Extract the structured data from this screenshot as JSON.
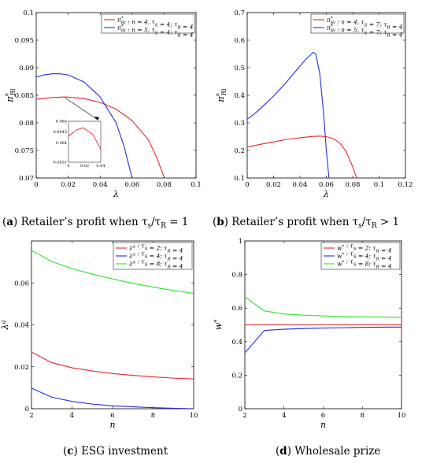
{
  "captions": {
    "a": {
      "label": "a",
      "text": "Retailer’s profit when τ",
      "sub1": "s",
      "slash": "/τ",
      "sub2": "R",
      "tail": " = 1"
    },
    "b": {
      "label": "b",
      "text": "Retailer’s profit when τ",
      "sub1": "s",
      "slash": "/τ",
      "sub2": "R",
      "tail": " > 1"
    },
    "c": {
      "label": "c",
      "text": "ESG investment"
    },
    "d": {
      "label": "d",
      "text": "Wholesale prize"
    }
  },
  "colors": {
    "red": "#e8262b",
    "blue": "#1f2ee0",
    "green": "#2ae62a",
    "axis": "#000000"
  },
  "chart_data": [
    {
      "id": "a",
      "type": "line",
      "xlabel": "λ",
      "ylabel": "π*Ri",
      "xlim": [
        0,
        0.1
      ],
      "ylim": [
        0.07,
        0.1
      ],
      "xticks": [
        "0",
        "0.02",
        "0.04",
        "0.06",
        "0.08",
        "0.1"
      ],
      "yticks": [
        "0.07",
        "0.075",
        "0.08",
        "0.085",
        "0.09",
        "0.095",
        "0.1"
      ],
      "legend": "top-right",
      "series": [
        {
          "name": "π*Ri : n = 4, τS = 4; τR = 4",
          "color": "red",
          "x": [
            0,
            0.01,
            0.018,
            0.03,
            0.04,
            0.05,
            0.06,
            0.07,
            0.075,
            0.08
          ],
          "y": [
            0.0843,
            0.0846,
            0.0847,
            0.0844,
            0.0837,
            0.0825,
            0.0804,
            0.077,
            0.074,
            0.0702
          ]
        },
        {
          "name": "π*Ri : n = 5, τS = 4; τR = 4",
          "color": "blue",
          "x": [
            0,
            0.005,
            0.01,
            0.015,
            0.02,
            0.03,
            0.04,
            0.05,
            0.055,
            0.06
          ],
          "y": [
            0.0883,
            0.0887,
            0.0889,
            0.0889,
            0.0887,
            0.0874,
            0.0847,
            0.08,
            0.0757,
            0.07
          ]
        }
      ],
      "inset": {
        "xlim": [
          0,
          0.04
        ],
        "ylim": [
          0.0831,
          0.085
        ],
        "xticks": [
          "0",
          "0.02",
          "0.04"
        ],
        "yticks": [
          "0.0831",
          "0.084",
          "0.0845",
          "0.085"
        ],
        "series": [
          {
            "color": "red",
            "x": [
              0,
              0.01,
              0.018,
              0.03,
              0.04
            ],
            "y": [
              0.0843,
              0.0846,
              0.0847,
              0.0844,
              0.0837
            ]
          }
        ]
      }
    },
    {
      "id": "b",
      "type": "line",
      "xlabel": "λ",
      "ylabel": "π*Ri",
      "xlim": [
        0,
        0.12
      ],
      "ylim": [
        0.1,
        0.7
      ],
      "xticks": [
        "0",
        "0.02",
        "0.04",
        "0.06",
        "0.08",
        "0.1",
        "0.12"
      ],
      "yticks": [
        "0.1",
        "0.2",
        "0.3",
        "0.4",
        "0.5",
        "0.6",
        "0.7"
      ],
      "legend": "top-right",
      "series": [
        {
          "name": "π*Ri : n = 4, τS = 7; τR = 4",
          "color": "red",
          "x": [
            0,
            0.01,
            0.02,
            0.03,
            0.04,
            0.05,
            0.055,
            0.06,
            0.065,
            0.07,
            0.075,
            0.08,
            0.083
          ],
          "y": [
            0.212,
            0.222,
            0.231,
            0.24,
            0.246,
            0.251,
            0.252,
            0.25,
            0.243,
            0.228,
            0.196,
            0.141,
            0.1
          ]
        },
        {
          "name": "π*Ri : n = 5, τS = 7; τR = 4",
          "color": "blue",
          "x": [
            0,
            0.005,
            0.01,
            0.02,
            0.03,
            0.04,
            0.045,
            0.05,
            0.052,
            0.055,
            0.058,
            0.06,
            0.062
          ],
          "y": [
            0.313,
            0.331,
            0.352,
            0.397,
            0.449,
            0.506,
            0.533,
            0.556,
            0.55,
            0.48,
            0.33,
            0.2,
            0.1
          ]
        }
      ]
    },
    {
      "id": "c",
      "type": "line",
      "xlabel": "n",
      "ylabel": "λa",
      "xlim": [
        2,
        10
      ],
      "ylim": [
        0,
        0.08
      ],
      "xticks": [
        "2",
        "4",
        "6",
        "8",
        "10"
      ],
      "yticks": [
        "0",
        "0.02",
        "0.04",
        "0.06"
      ],
      "legend": "top-right",
      "series": [
        {
          "name": "λa : τS = 2; τR = 4",
          "color": "red",
          "x": [
            2,
            3,
            4,
            5,
            6,
            7,
            8,
            9,
            10
          ],
          "y": [
            0.027,
            0.022,
            0.0195,
            0.018,
            0.0168,
            0.0159,
            0.0152,
            0.0146,
            0.0142
          ]
        },
        {
          "name": "λa : τS = 4; τR = 4",
          "color": "blue",
          "x": [
            2,
            3,
            4,
            5,
            6,
            7,
            8,
            9,
            10
          ],
          "y": [
            0.0098,
            0.0055,
            0.0035,
            0.0022,
            0.0014,
            0.0009,
            0.0005,
            0.0002,
            0.0
          ]
        },
        {
          "name": "λa : τS = 8; τR = 4",
          "color": "green",
          "x": [
            2,
            3,
            4,
            5,
            6,
            7,
            8,
            9,
            10
          ],
          "y": [
            0.0755,
            0.0702,
            0.0668,
            0.0642,
            0.0619,
            0.0598,
            0.058,
            0.0564,
            0.055
          ]
        }
      ]
    },
    {
      "id": "d",
      "type": "line",
      "xlabel": "n",
      "ylabel": "w*",
      "xlim": [
        2,
        10
      ],
      "ylim": [
        0,
        1
      ],
      "xticks": [
        "2",
        "4",
        "6",
        "8",
        "10"
      ],
      "yticks": [
        "0",
        "0.2",
        "0.4",
        "0.6",
        "0.8",
        "1"
      ],
      "legend": "top-right",
      "series": [
        {
          "name": "w* : τS = 2; τR = 4",
          "color": "red",
          "x": [
            2,
            3,
            4,
            5,
            6,
            7,
            8,
            9,
            10
          ],
          "y": [
            0.5,
            0.5,
            0.5,
            0.5,
            0.5,
            0.5,
            0.5,
            0.5,
            0.5
          ]
        },
        {
          "name": "w* : τS = 4; τR = 4",
          "color": "blue",
          "x": [
            2,
            3,
            4,
            5,
            6,
            7,
            8,
            9,
            10
          ],
          "y": [
            0.333,
            0.467,
            0.474,
            0.478,
            0.481,
            0.483,
            0.485,
            0.486,
            0.487
          ]
        },
        {
          "name": "w* : τS = 8; τR = 4",
          "color": "green",
          "x": [
            2,
            3,
            4,
            5,
            6,
            7,
            8,
            9,
            10
          ],
          "y": [
            0.667,
            0.583,
            0.565,
            0.558,
            0.553,
            0.55,
            0.548,
            0.546,
            0.545
          ]
        }
      ]
    }
  ]
}
